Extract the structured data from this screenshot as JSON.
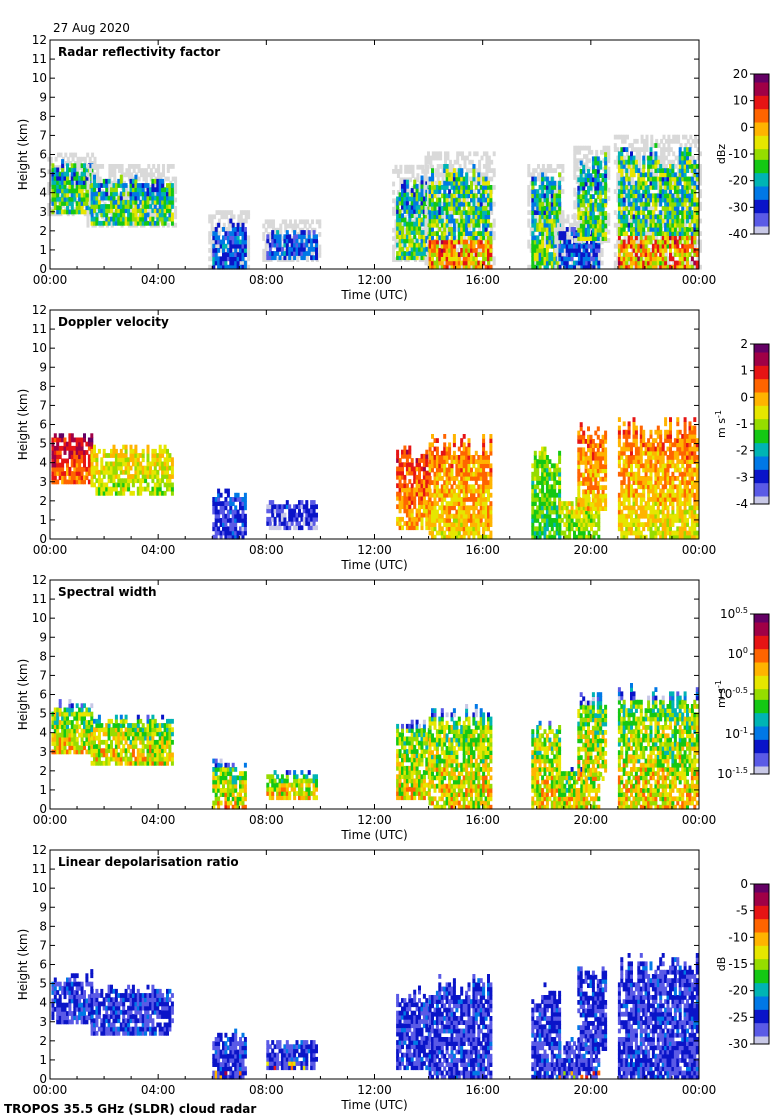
{
  "date": "27 Aug 2020",
  "footer": "TROPOS 35.5 GHz (SLDR) cloud radar",
  "colors": {
    "ink": "#000000",
    "background": "#ffffff",
    "trace": "#d9d9d9"
  },
  "colormap": [
    "#c8c8e6",
    "#5a5ae6",
    "#0a14c8",
    "#0078e6",
    "#00b4b4",
    "#14c814",
    "#96dc00",
    "#e6e600",
    "#ffb400",
    "#ff6400",
    "#e61414",
    "#a00046",
    "#640064"
  ],
  "chart_data": [
    {
      "type": "heatmap",
      "title": "Radar reflectivity factor",
      "xlabel": "Time (UTC)",
      "ylabel": "Height (km)",
      "xlim": [
        0,
        24
      ],
      "ylim": [
        0,
        12
      ],
      "xticks": [
        "00:00",
        "04:00",
        "08:00",
        "12:00",
        "16:00",
        "20:00",
        "00:00"
      ],
      "yticks": [
        "0",
        "1",
        "2",
        "3",
        "4",
        "5",
        "6",
        "7",
        "8",
        "9",
        "10",
        "11",
        "12"
      ],
      "colorbar": {
        "label": "dBz",
        "ticks": [
          "20",
          "10",
          "0",
          "-10",
          "-20",
          "-30",
          "-40"
        ],
        "range": [
          -40,
          20
        ]
      },
      "has_trace": true
    },
    {
      "type": "heatmap",
      "title": "Doppler velocity",
      "xlabel": "Time (UTC)",
      "ylabel": "Height (km)",
      "xlim": [
        0,
        24
      ],
      "ylim": [
        0,
        12
      ],
      "xticks": [
        "00:00",
        "04:00",
        "08:00",
        "12:00",
        "16:00",
        "20:00",
        "00:00"
      ],
      "yticks": [
        "0",
        "1",
        "2",
        "3",
        "4",
        "5",
        "6",
        "7",
        "8",
        "9",
        "10",
        "11",
        "12"
      ],
      "colorbar": {
        "label": "m s",
        "label_sup": "-1",
        "ticks": [
          "2",
          "1",
          "0",
          "-1",
          "-2",
          "-3",
          "-4"
        ],
        "range": [
          -4,
          2
        ]
      },
      "has_trace": false
    },
    {
      "type": "heatmap",
      "title": "Spectral width",
      "xlabel": "Time (UTC)",
      "ylabel": "Height (km)",
      "xlim": [
        0,
        24
      ],
      "ylim": [
        0,
        12
      ],
      "xticks": [
        "00:00",
        "04:00",
        "08:00",
        "12:00",
        "16:00",
        "20:00",
        "00:00"
      ],
      "yticks": [
        "0",
        "1",
        "2",
        "3",
        "4",
        "5",
        "6",
        "7",
        "8",
        "9",
        "10",
        "11",
        "12"
      ],
      "colorbar": {
        "label": "m s",
        "label_sup": "-1",
        "base": "10",
        "ticks": [
          "0.5",
          "0",
          "-0.5",
          "-1",
          "-1.5"
        ],
        "range": [
          -1.5,
          0.5
        ]
      },
      "has_trace": false
    },
    {
      "type": "heatmap",
      "title": "Linear depolarisation ratio",
      "xlabel": "Time (UTC)",
      "ylabel": "Height (km)",
      "xlim": [
        0,
        24
      ],
      "ylim": [
        0,
        12
      ],
      "xticks": [
        "00:00",
        "04:00",
        "08:00",
        "12:00",
        "16:00",
        "20:00",
        "00:00"
      ],
      "yticks": [
        "0",
        "1",
        "2",
        "3",
        "4",
        "5",
        "6",
        "7",
        "8",
        "9",
        "10",
        "11",
        "12"
      ],
      "colorbar": {
        "label": "dB",
        "ticks": [
          "0",
          "-5",
          "-10",
          "-15",
          "-20",
          "-25",
          "-30"
        ],
        "range": [
          -30,
          0
        ]
      },
      "has_trace": false
    }
  ],
  "cloud_regions": [
    {
      "t0": 0.05,
      "t1": 1.5,
      "h0": 2.9,
      "h1": 5.6,
      "kind": "mid",
      "vr": [
        3.5,
        5.4
      ]
    },
    {
      "t0": 1.5,
      "t1": 4.5,
      "h0": 2.3,
      "h1": 4.9,
      "kind": "mid",
      "vr": [
        2.4,
        3.8
      ]
    },
    {
      "t0": 6.0,
      "t1": 7.2,
      "h0": 0.0,
      "h1": 2.5,
      "kind": "low",
      "vr": [
        0.3,
        1.2
      ]
    },
    {
      "t0": 8.0,
      "t1": 9.8,
      "h0": 0.5,
      "h1": 2.0,
      "kind": "low",
      "vr": [
        0.2,
        0.8
      ]
    },
    {
      "t0": 12.8,
      "t1": 14.0,
      "h0": 0.5,
      "h1": 4.8,
      "kind": "mid",
      "vr": [
        3.0,
        5.0
      ]
    },
    {
      "t0": 14.0,
      "t1": 16.3,
      "h0": 0.0,
      "h1": 5.5,
      "kind": "deep",
      "vr": [
        2.6,
        4.6
      ]
    },
    {
      "t0": 17.8,
      "t1": 18.8,
      "h0": 0.0,
      "h1": 5.0,
      "kind": "mid",
      "vr": [
        1.8,
        3.0
      ]
    },
    {
      "t0": 18.8,
      "t1": 20.3,
      "h0": 0.0,
      "h1": 2.2,
      "kind": "low",
      "vr": [
        2.0,
        3.6
      ]
    },
    {
      "t0": 19.5,
      "t1": 20.5,
      "h0": 1.5,
      "h1": 6.0,
      "kind": "mid",
      "vr": [
        3.0,
        4.6
      ]
    },
    {
      "t0": 21.0,
      "t1": 23.9,
      "h0": 0.0,
      "h1": 6.5,
      "kind": "deep",
      "vr": [
        2.4,
        4.6
      ]
    }
  ]
}
